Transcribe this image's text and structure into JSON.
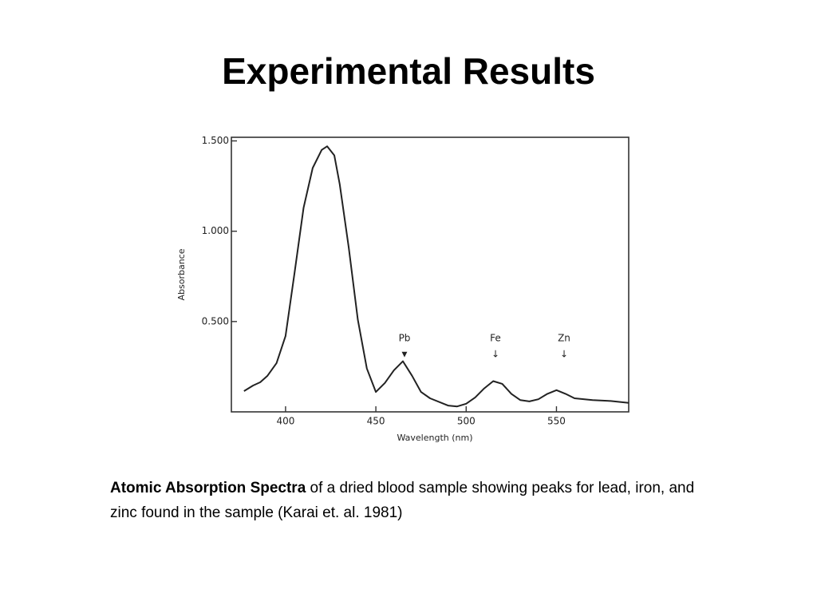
{
  "title": "Experimental Results",
  "caption": {
    "bold": "Atomic Absorption Spectra",
    "text": " of a dried blood sample showing peaks for lead, iron, and zinc found in the sample  (Karai et. al. 1981)"
  },
  "chart_data": {
    "type": "line",
    "x_label": "Wavelength (nm)",
    "y_label": "Absorbance",
    "x": [
      377,
      382,
      386,
      390,
      395,
      400,
      405,
      410,
      415,
      420,
      423,
      427,
      430,
      435,
      440,
      445,
      450,
      455,
      460,
      465,
      470,
      475,
      480,
      490,
      495,
      500,
      505,
      510,
      515,
      520,
      525,
      530,
      535,
      540,
      545,
      550,
      555,
      560,
      570,
      580,
      590
    ],
    "series": [
      {
        "color": "#222222",
        "values": [
          0.115,
          0.146,
          0.164,
          0.2,
          0.27,
          0.42,
          0.77,
          1.13,
          1.35,
          1.45,
          1.47,
          1.42,
          1.26,
          0.91,
          0.51,
          0.24,
          0.11,
          0.16,
          0.23,
          0.28,
          0.2,
          0.11,
          0.075,
          0.035,
          0.03,
          0.045,
          0.08,
          0.13,
          0.17,
          0.155,
          0.1,
          0.065,
          0.058,
          0.07,
          0.1,
          0.12,
          0.1,
          0.075,
          0.065,
          0.06,
          0.05
        ]
      }
    ],
    "annotations": [
      "Pb",
      "Fe",
      "Zn"
    ],
    "xlim": [
      370,
      590
    ],
    "ylim": [
      0,
      1.52
    ],
    "xticks": [
      400,
      450,
      500,
      550
    ],
    "yticks": [
      {
        "value": 0.5,
        "label": "0.500"
      },
      {
        "value": 1.0,
        "label": "1.000"
      },
      {
        "value": 1.5,
        "label": "1.500"
      }
    ]
  }
}
